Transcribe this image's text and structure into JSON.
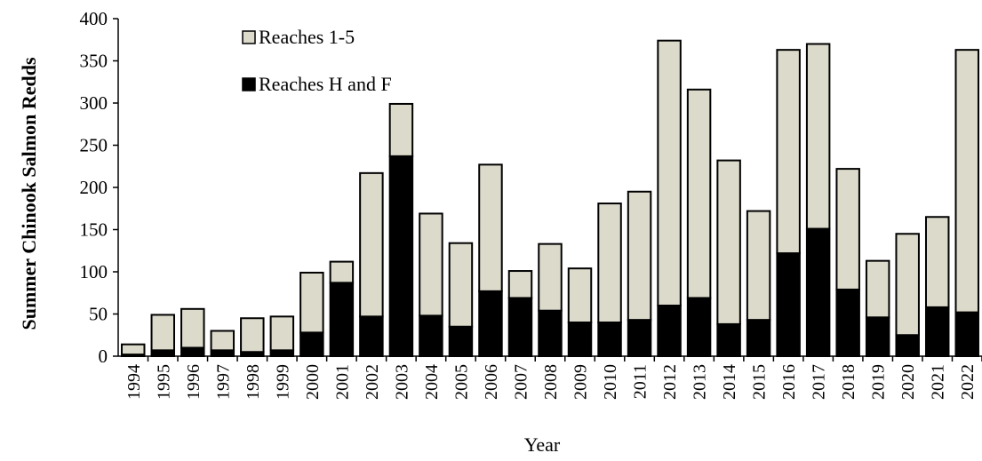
{
  "chart_data": {
    "type": "bar",
    "stacked": true,
    "categories": [
      "1994",
      "1995",
      "1996",
      "1997",
      "1998",
      "1999",
      "2000",
      "2001",
      "2002",
      "2003",
      "2004",
      "2005",
      "2006",
      "2007",
      "2008",
      "2009",
      "2010",
      "2011",
      "2012",
      "2013",
      "2014",
      "2015",
      "2016",
      "2017",
      "2018",
      "2019",
      "2020",
      "2021",
      "2022"
    ],
    "series": [
      {
        "name": "Reaches H and F",
        "color": "#000000",
        "values": [
          2,
          7,
          10,
          7,
          5,
          7,
          28,
          87,
          47,
          237,
          48,
          35,
          77,
          69,
          54,
          40,
          40,
          43,
          60,
          69,
          38,
          43,
          122,
          151,
          79,
          46,
          25,
          58,
          52
        ]
      },
      {
        "name": "Reaches 1-5",
        "color": "#dcdacb",
        "values": [
          12,
          42,
          46,
          23,
          40,
          40,
          71,
          25,
          170,
          62,
          121,
          99,
          150,
          32,
          79,
          64,
          141,
          152,
          314,
          247,
          194,
          129,
          241,
          219,
          143,
          67,
          120,
          107,
          311
        ]
      }
    ],
    "xlabel": "Year",
    "ylabel": "Summer Chinook Salmon Redds",
    "ylim": [
      0,
      400
    ],
    "yticks": [
      0,
      50,
      100,
      150,
      200,
      250,
      300,
      350,
      400
    ],
    "grid": false,
    "legend_position": "top-left"
  }
}
